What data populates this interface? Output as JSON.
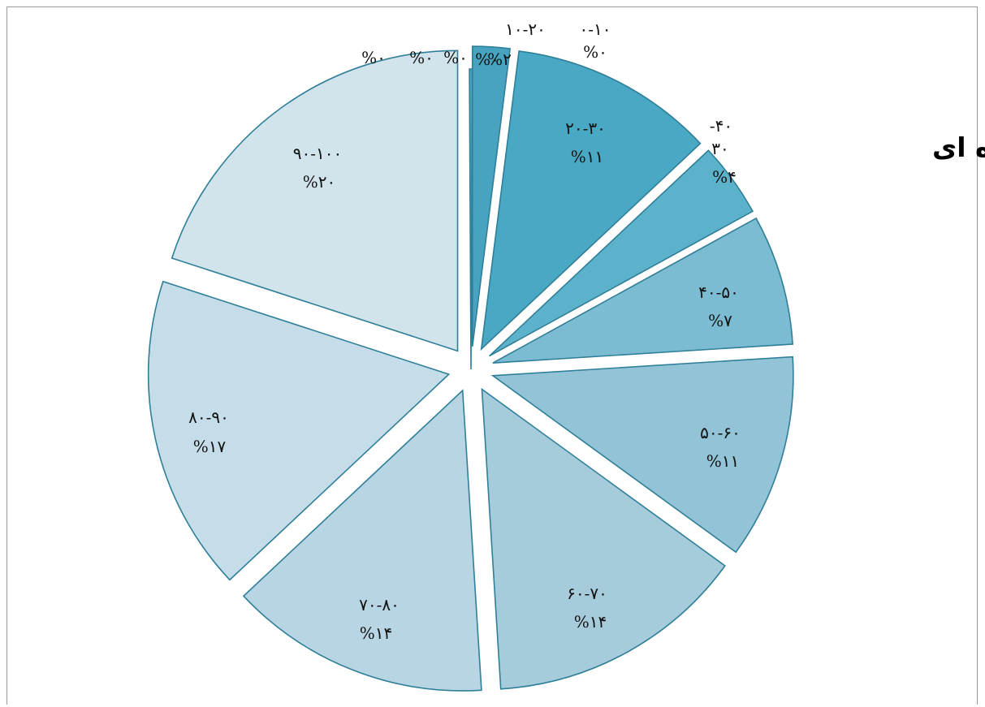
{
  "chart_data": {
    "type": "pie",
    "title": "نمودار دایره ای",
    "slices": [
      {
        "category": "۰-۱۰",
        "pct": 0,
        "label": "%۰",
        "color": "#4ba3bd"
      },
      {
        "category": "۱۰-۲۰",
        "pct": 2,
        "label": "%۲",
        "color": "#47a3bf"
      },
      {
        "category": "۲۰-۳۰",
        "pct": 11,
        "label": "%۱۱",
        "color": "#49a8c3"
      },
      {
        "category": "۳۰-۴۰",
        "pct": 4,
        "label": "%۴",
        "color": "#5db2cb"
      },
      {
        "category": "۴۰-۵۰",
        "pct": 7,
        "label": "%۷",
        "color": "#7cbcd2"
      },
      {
        "category": "۵۰-۶۰",
        "pct": 11,
        "label": "%۱۱",
        "color": "#92c3d6"
      },
      {
        "category": "۶۰-۷۰",
        "pct": 14,
        "label": "%۱۴",
        "color": "#a6ccdb"
      },
      {
        "category": "۷۰-۸۰",
        "pct": 14,
        "label": "%۱۴",
        "color": "#b7d5e2"
      },
      {
        "category": "۸۰-۹۰",
        "pct": 17,
        "label": "%۱۷",
        "color": "#c5dde8"
      },
      {
        "category": "۹۰-۱۰۰",
        "pct": 20,
        "label": "%۲۰",
        "color": "#d1e3eb"
      }
    ],
    "extra_labels": [
      "%۰",
      "%۰",
      "%۰",
      "%۰"
    ],
    "small_category_label_parts": [
      "-۴۰",
      "۳۰"
    ]
  }
}
